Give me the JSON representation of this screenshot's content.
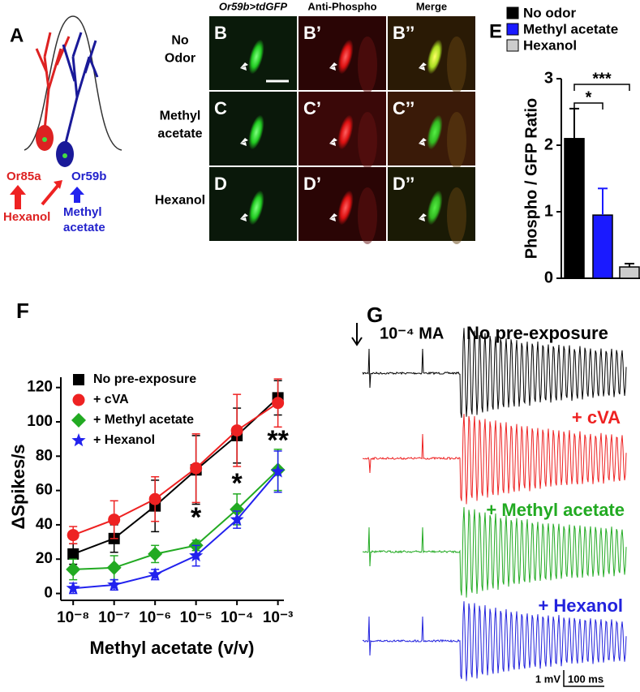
{
  "panel_a": {
    "label": "A",
    "neuron_left": "Or85a",
    "neuron_right": "Or59b",
    "odor_left": "Hexanol",
    "odor_right": [
      "Methyl",
      "acetate"
    ]
  },
  "images": {
    "columns": [
      "Or59b>tdGFP",
      "Anti-Phospho",
      "Merge"
    ],
    "rows": [
      [
        "No",
        "Odor"
      ],
      [
        "Methyl",
        "acetate"
      ],
      [
        "Hexanol"
      ]
    ],
    "cells": [
      [
        "B",
        "B’",
        "B’’"
      ],
      [
        "C",
        "C’",
        "C’’"
      ],
      [
        "D",
        "D’",
        "D’’"
      ]
    ]
  },
  "traces": {
    "label": "G",
    "stimulus": "10⁻⁴ MA",
    "conditions": [
      {
        "name": "No pre-exposure",
        "color": "#000000"
      },
      {
        "name": "+ cVA",
        "color": "#ee2222"
      },
      {
        "name": "+ Methyl acetate",
        "color": "#22aa22"
      },
      {
        "name": "+ Hexanol",
        "color": "#2222dd"
      }
    ],
    "scale_v": "1 mV",
    "scale_t": "100 ms"
  },
  "chart_data": [
    {
      "panel": "E",
      "type": "bar",
      "categories": [
        "No odor",
        "Methyl acetate",
        "Hexanol"
      ],
      "colors": [
        "#000000",
        "#1a1aff",
        "#cccccc"
      ],
      "values": [
        2.1,
        0.95,
        0.17
      ],
      "errors": [
        0.45,
        0.4,
        0.05
      ],
      "ylabel": "Phospho / GFP Ratio",
      "ylim": [
        0,
        3
      ],
      "yticks": [
        0,
        1,
        2,
        3
      ],
      "annotations": [
        "*",
        "***"
      ]
    },
    {
      "panel": "F",
      "type": "line",
      "x": [
        1e-08,
        1e-07,
        1e-06,
        1e-05,
        0.0001,
        0.001
      ],
      "xscale": "log",
      "xlim": [
        5e-09,
        0.0014
      ],
      "xticks": [
        {
          "value": 1e-08,
          "label": "10⁻⁸"
        },
        {
          "value": 1e-07,
          "label": "10⁻⁷"
        },
        {
          "value": 1e-06,
          "label": "10⁻⁶"
        },
        {
          "value": 1e-05,
          "label": "10⁻⁵"
        },
        {
          "value": 0.0001,
          "label": "10⁻⁴"
        },
        {
          "value": 0.001,
          "label": "10⁻³"
        }
      ],
      "ylim": [
        -4,
        126
      ],
      "yticks": [
        0,
        20,
        40,
        60,
        80,
        100,
        120
      ],
      "xlabel": "Methyl acetate (v/v)",
      "ylabel": "ΔSpikes/s",
      "legend": "upper-left",
      "series": [
        {
          "name": "No pre-exposure",
          "color": "#000000",
          "marker": "square",
          "values": [
            23,
            32,
            51,
            72,
            92,
            114
          ],
          "errors": [
            6,
            8,
            15,
            20,
            16,
            10
          ]
        },
        {
          "name": "+ cVA",
          "color": "#ee2222",
          "marker": "circle",
          "values": [
            34,
            43,
            55,
            73,
            95,
            111
          ],
          "errors": [
            5,
            11,
            13,
            20,
            21,
            14
          ]
        },
        {
          "name": "+ Methyl acetate",
          "color": "#22aa22",
          "marker": "diamond",
          "values": [
            14,
            15,
            23,
            28,
            49,
            72
          ],
          "errors": [
            6,
            7,
            5,
            3,
            9,
            12
          ]
        },
        {
          "name": "+ Hexanol",
          "color": "#2222ee",
          "marker": "star",
          "values": [
            3,
            5,
            11,
            22,
            43,
            71
          ],
          "errors": [
            3,
            3,
            3,
            6,
            5,
            12
          ]
        }
      ],
      "annotations": [
        "*",
        "*",
        "**"
      ]
    }
  ]
}
